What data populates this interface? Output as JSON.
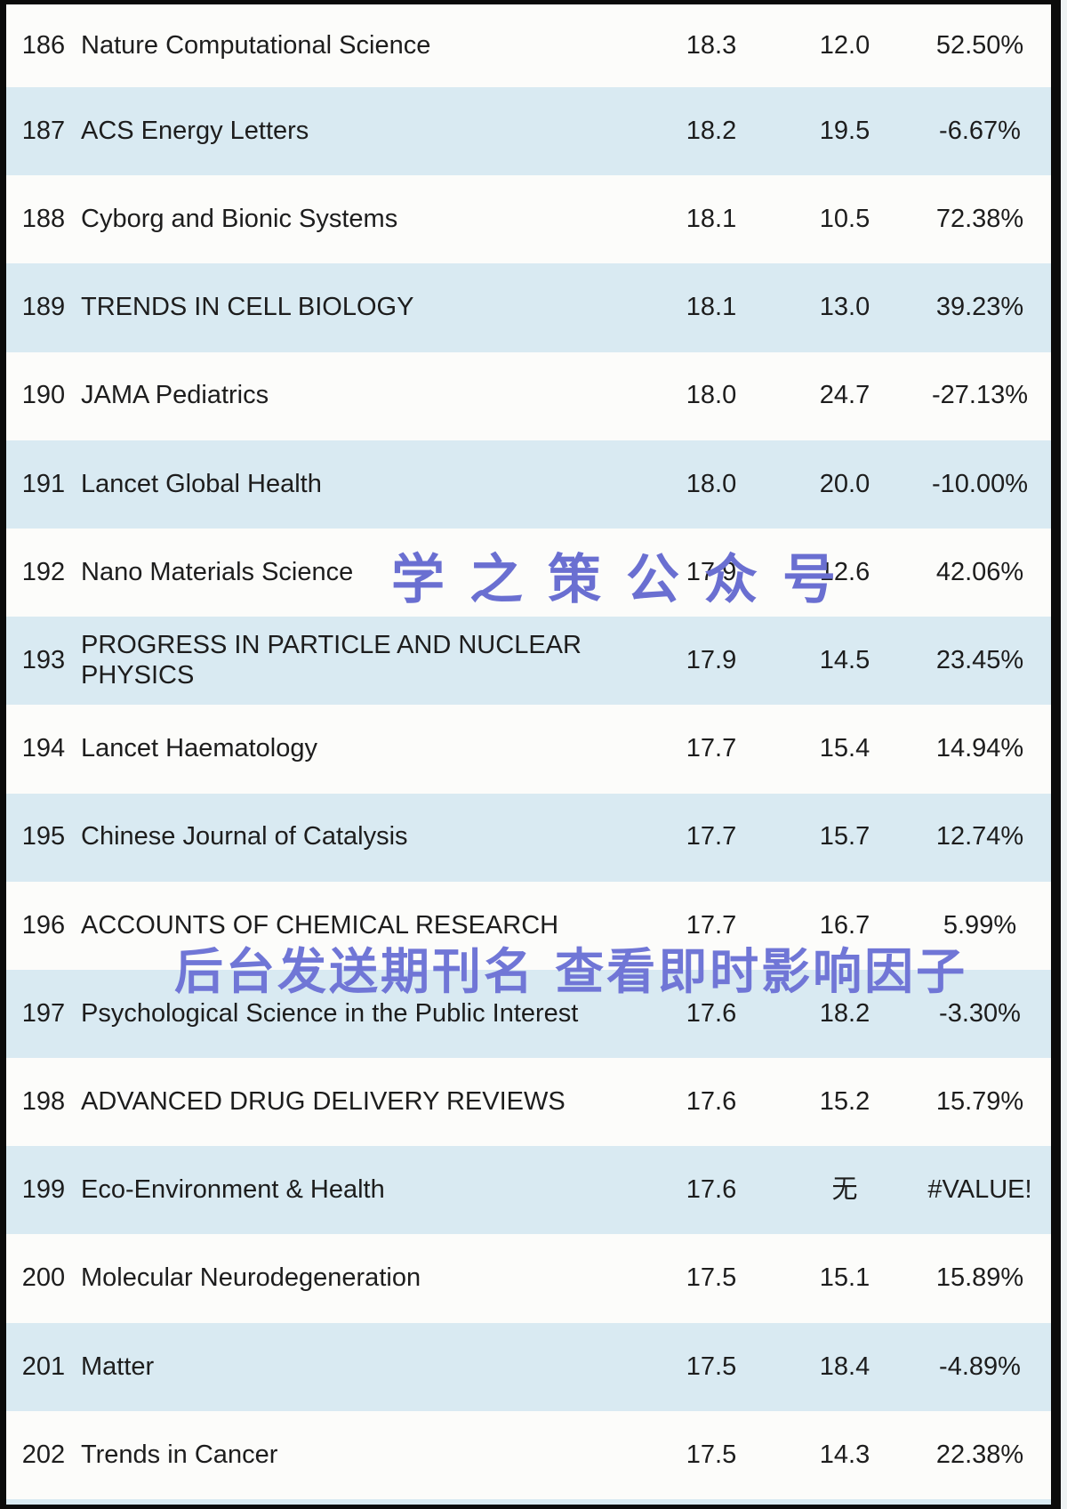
{
  "table": {
    "rows": [
      {
        "rank": "186",
        "journal": "Nature Computational Science",
        "if_new": "18.3",
        "if_old": "12.0",
        "change": "52.50%"
      },
      {
        "rank": "187",
        "journal": "ACS Energy Letters",
        "if_new": "18.2",
        "if_old": "19.5",
        "change": "-6.67%"
      },
      {
        "rank": "188",
        "journal": "Cyborg and Bionic Systems",
        "if_new": "18.1",
        "if_old": "10.5",
        "change": "72.38%"
      },
      {
        "rank": "189",
        "journal": "TRENDS IN CELL BIOLOGY",
        "if_new": "18.1",
        "if_old": "13.0",
        "change": "39.23%"
      },
      {
        "rank": "190",
        "journal": "JAMA Pediatrics",
        "if_new": "18.0",
        "if_old": "24.7",
        "change": "-27.13%"
      },
      {
        "rank": "191",
        "journal": "Lancet Global Health",
        "if_new": "18.0",
        "if_old": "20.0",
        "change": "-10.00%"
      },
      {
        "rank": "192",
        "journal": "Nano Materials Science",
        "if_new": "17.9",
        "if_old": "12.6",
        "change": "42.06%"
      },
      {
        "rank": "193",
        "journal": "PROGRESS IN PARTICLE AND NUCLEAR PHYSICS",
        "if_new": "17.9",
        "if_old": "14.5",
        "change": "23.45%"
      },
      {
        "rank": "194",
        "journal": "Lancet Haematology",
        "if_new": "17.7",
        "if_old": "15.4",
        "change": "14.94%"
      },
      {
        "rank": "195",
        "journal": "Chinese Journal of Catalysis",
        "if_new": "17.7",
        "if_old": "15.7",
        "change": "12.74%"
      },
      {
        "rank": "196",
        "journal": "ACCOUNTS OF CHEMICAL RESEARCH",
        "if_new": "17.7",
        "if_old": "16.7",
        "change": "5.99%"
      },
      {
        "rank": "197",
        "journal": "Psychological Science in the Public Interest",
        "if_new": "17.6",
        "if_old": "18.2",
        "change": "-3.30%"
      },
      {
        "rank": "198",
        "journal": "ADVANCED DRUG DELIVERY REVIEWS",
        "if_new": "17.6",
        "if_old": "15.2",
        "change": "15.79%"
      },
      {
        "rank": "199",
        "journal": "Eco-Environment & Health",
        "if_new": "17.6",
        "if_old": "无",
        "change": "#VALUE!"
      },
      {
        "rank": "200",
        "journal": "Molecular Neurodegeneration",
        "if_new": "17.5",
        "if_old": "15.1",
        "change": "15.89%"
      },
      {
        "rank": "201",
        "journal": "Matter",
        "if_new": "17.5",
        "if_old": "18.4",
        "change": "-4.89%"
      },
      {
        "rank": "202",
        "journal": "Trends in Cancer",
        "if_new": "17.5",
        "if_old": "14.3",
        "change": "22.38%"
      }
    ]
  },
  "watermarks": {
    "brand": "学之策公众号",
    "promo": "后台发送期刊名 查看即时影响因子"
  },
  "colors": {
    "row_blue": "#d9eaf2",
    "row_white": "#fcfcfa",
    "watermark_blue": "#6a6fd1",
    "frame_black": "#0b0b0b",
    "text": "#1d1d1d"
  }
}
